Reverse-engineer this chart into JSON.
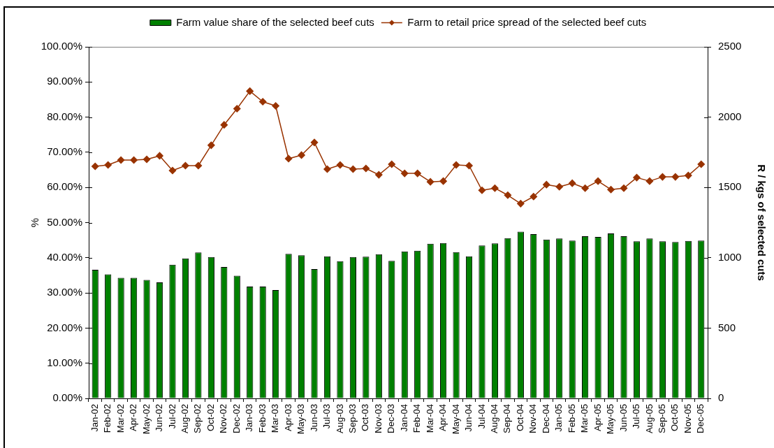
{
  "chart_data": {
    "type": "bar",
    "ylabel": "%",
    "y2label": "R / kgs of selected cuts",
    "legend": "top",
    "grid": false,
    "categories": [
      "Jan-02",
      "Feb-02",
      "Mar-02",
      "Apr-02",
      "May-02",
      "Jun-02",
      "Jul-02",
      "Aug-02",
      "Sep-02",
      "Oct-02",
      "Nov-02",
      "Dec-02",
      "Jan-03",
      "Feb-03",
      "Mar-03",
      "Apr-03",
      "May-03",
      "Jun-03",
      "Jul-03",
      "Aug-03",
      "Sep-03",
      "Oct-03",
      "Nov-03",
      "Dec-03",
      "Jan-04",
      "Feb-04",
      "Mar-04",
      "Apr-04",
      "May-04",
      "Jun-04",
      "Jul-04",
      "Aug-04",
      "Sep-04",
      "Oct-04",
      "Nov-04",
      "Dec-04",
      "Jan-05",
      "Feb-05",
      "Mar-05",
      "Apr-05",
      "May-05",
      "Jun-05",
      "Jul-05",
      "Aug-05",
      "Sep-05",
      "Oct-05",
      "Nov-05",
      "Dec-05"
    ],
    "series": [
      {
        "name": "Farm value share of the selected beef cuts",
        "color": "#008000",
        "values": [
          36.6,
          35.3,
          34.3,
          34.3,
          33.7,
          33.0,
          38.0,
          39.8,
          41.5,
          40.2,
          37.4,
          34.9,
          31.8,
          31.8,
          30.8,
          41.1,
          40.7,
          36.8,
          40.4,
          39.0,
          40.2,
          40.3,
          41.0,
          39.1,
          41.8,
          42.0,
          44.0,
          44.2,
          41.6,
          40.4,
          43.5,
          44.1,
          45.6,
          47.4,
          46.7,
          45.2,
          45.5,
          44.9,
          46.1,
          45.9,
          46.9,
          46.1,
          44.7,
          45.5,
          44.7,
          44.5,
          44.8,
          44.9
        ]
      },
      {
        "name": "Farm to retail price spread of the selected beef cuts",
        "type": "line",
        "color": "#993300",
        "axis": "y2",
        "marker": "diamond",
        "values": [
          1650,
          1660,
          1695,
          1695,
          1700,
          1725,
          1620,
          1655,
          1655,
          1800,
          1945,
          2060,
          2185,
          2110,
          2080,
          1705,
          1730,
          1820,
          1630,
          1660,
          1630,
          1635,
          1590,
          1665,
          1600,
          1600,
          1540,
          1545,
          1660,
          1655,
          1480,
          1495,
          1445,
          1385,
          1435,
          1520,
          1505,
          1530,
          1495,
          1545,
          1485,
          1495,
          1570,
          1545,
          1575,
          1575,
          1585,
          1665
        ]
      }
    ],
    "ylim": [
      0,
      100
    ],
    "yticks": [
      {
        "value": 0,
        "label": "0.00%"
      },
      {
        "value": 10,
        "label": "10.00%"
      },
      {
        "value": 20,
        "label": "20.00%"
      },
      {
        "value": 30,
        "label": "30.00%"
      },
      {
        "value": 40,
        "label": "40.00%"
      },
      {
        "value": 50,
        "label": "50.00%"
      },
      {
        "value": 60,
        "label": "60.00%"
      },
      {
        "value": 70,
        "label": "70.00%"
      },
      {
        "value": 80,
        "label": "80.00%"
      },
      {
        "value": 90,
        "label": "90.00%"
      },
      {
        "value": 100,
        "label": "100.00%"
      }
    ],
    "y2lim": [
      0,
      2500
    ],
    "y2ticks": [
      0,
      500,
      1000,
      1500,
      2000,
      2500
    ]
  }
}
